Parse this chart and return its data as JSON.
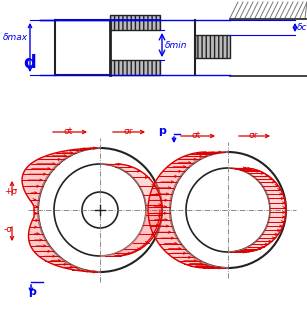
{
  "fig_width": 3.07,
  "fig_height": 3.3,
  "dpi": 100,
  "blue": "#0000EE",
  "red": "#DD0000",
  "red_light": "#FF9999",
  "dark": "#222222",
  "gray": "#777777",
  "bg": "#FFFFFF",
  "labels": {
    "delta_max": "δmax",
    "delta_min": "δmin",
    "delta_c": "δc",
    "d": "d",
    "sigma_t": "σt",
    "sigma_r": "σr",
    "plus_sigma": "+σ",
    "minus_sigma": "-σ",
    "p": "p"
  }
}
